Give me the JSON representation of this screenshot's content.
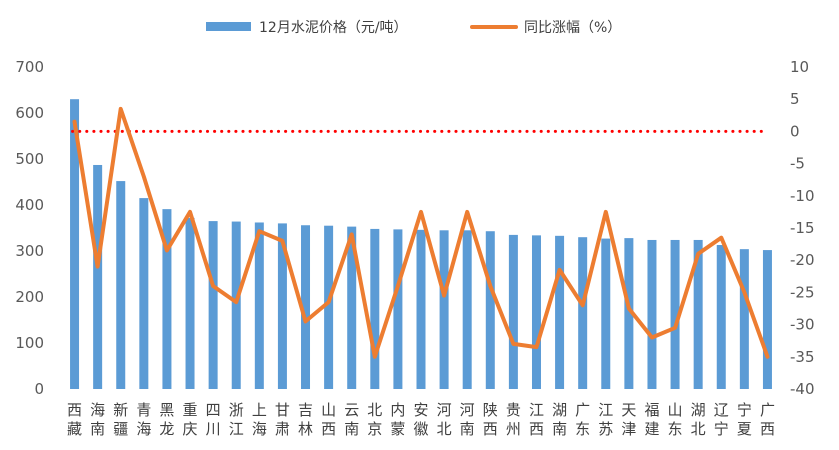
{
  "chart_data": {
    "type": "bar+line",
    "categories": [
      [
        "西",
        "藏"
      ],
      [
        "海",
        "南"
      ],
      [
        "新",
        "疆"
      ],
      [
        "青",
        "海"
      ],
      [
        "黑",
        "龙"
      ],
      [
        "重",
        "庆"
      ],
      [
        "四",
        "川"
      ],
      [
        "浙",
        "江"
      ],
      [
        "上",
        "海"
      ],
      [
        "甘",
        "肃"
      ],
      [
        "吉",
        "林"
      ],
      [
        "山",
        "西"
      ],
      [
        "云",
        "南"
      ],
      [
        "北",
        "京"
      ],
      [
        "内",
        "蒙"
      ],
      [
        "安",
        "徽"
      ],
      [
        "河",
        "北"
      ],
      [
        "河",
        "南"
      ],
      [
        "陕",
        "西"
      ],
      [
        "贵",
        "州"
      ],
      [
        "江",
        "西"
      ],
      [
        "湖",
        "南"
      ],
      [
        "广",
        "东"
      ],
      [
        "江",
        "苏"
      ],
      [
        "天",
        "津"
      ],
      [
        "福",
        "建"
      ],
      [
        "山",
        "东"
      ],
      [
        "湖",
        "北"
      ],
      [
        "辽",
        "宁"
      ],
      [
        "宁",
        "夏"
      ],
      [
        "广",
        "西"
      ]
    ],
    "series": [
      {
        "name": "12月水泥价格（元/吨）",
        "type": "bar",
        "axis": "left",
        "color": "#5B9BD5",
        "values": [
          630,
          487,
          452,
          415,
          391,
          372,
          365,
          364,
          362,
          360,
          356,
          355,
          353,
          348,
          347,
          346,
          345,
          345,
          343,
          335,
          334,
          333,
          330,
          327,
          328,
          324,
          324,
          324,
          313,
          304,
          302
        ]
      },
      {
        "name": "同比涨幅（%）",
        "type": "line",
        "axis": "right",
        "color": "#ED7D31",
        "values": [
          1.5,
          -21,
          3.5,
          -7,
          -18.5,
          -12.5,
          -24,
          -26.5,
          -15.5,
          -17,
          -29.5,
          -26.5,
          -16,
          -35,
          -24,
          -12.5,
          -25.5,
          -12.5,
          -24,
          -33,
          -33.5,
          -21.5,
          -27,
          -12.5,
          -27.5,
          -32,
          -30.5,
          -19,
          -16.5,
          -25,
          -35
        ]
      }
    ],
    "left_axis": {
      "ylim": [
        0,
        700
      ],
      "ticks": [
        "0",
        "100",
        "200",
        "300",
        "400",
        "500",
        "600",
        "700"
      ]
    },
    "right_axis": {
      "ylim": [
        -40,
        10
      ],
      "ticks": [
        "10",
        "5",
        "0",
        "-5",
        "-10",
        "-15",
        "-20",
        "-25",
        "-30",
        "-35",
        "-40"
      ]
    },
    "reference_line": {
      "value": 0,
      "axis": "right",
      "color": "#FF0000",
      "style": "dotted"
    },
    "legend_position": "top",
    "grid": false
  }
}
